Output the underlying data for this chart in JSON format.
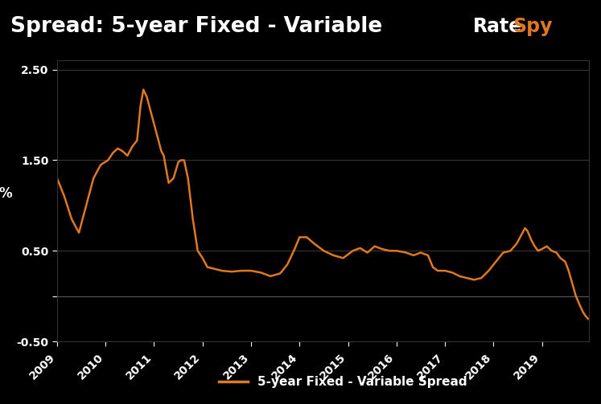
{
  "title": "Spread: 5-year Fixed - Variable",
  "ylabel": "%",
  "legend_label": "5-year Fixed - Variable Spread",
  "line_color": "#E07820",
  "background_color": "#000000",
  "plot_bg_color": "#000000",
  "title_bg_color": "#0a0a0a",
  "grid_color": "#444444",
  "text_color": "#ffffff",
  "orange_accent": "#E07820",
  "ylim": [
    -0.5,
    2.6
  ],
  "xtick_years": [
    2009,
    2010,
    2011,
    2012,
    2013,
    2014,
    2015,
    2016,
    2017,
    2018,
    2019
  ],
  "line_width": 1.8,
  "data": [
    [
      2009.0,
      1.3
    ],
    [
      2009.15,
      1.1
    ],
    [
      2009.3,
      0.85
    ],
    [
      2009.45,
      0.7
    ],
    [
      2009.6,
      1.0
    ],
    [
      2009.75,
      1.3
    ],
    [
      2009.9,
      1.45
    ],
    [
      2010.05,
      1.5
    ],
    [
      2010.15,
      1.58
    ],
    [
      2010.25,
      1.63
    ],
    [
      2010.35,
      1.6
    ],
    [
      2010.45,
      1.55
    ],
    [
      2010.55,
      1.65
    ],
    [
      2010.65,
      1.72
    ],
    [
      2010.72,
      2.1
    ],
    [
      2010.78,
      2.28
    ],
    [
      2010.85,
      2.2
    ],
    [
      2010.95,
      2.0
    ],
    [
      2011.05,
      1.8
    ],
    [
      2011.15,
      1.6
    ],
    [
      2011.2,
      1.55
    ],
    [
      2011.3,
      1.25
    ],
    [
      2011.4,
      1.3
    ],
    [
      2011.5,
      1.48
    ],
    [
      2011.55,
      1.5
    ],
    [
      2011.62,
      1.5
    ],
    [
      2011.7,
      1.3
    ],
    [
      2011.8,
      0.85
    ],
    [
      2011.9,
      0.5
    ],
    [
      2012.0,
      0.42
    ],
    [
      2012.1,
      0.32
    ],
    [
      2012.25,
      0.3
    ],
    [
      2012.4,
      0.28
    ],
    [
      2012.6,
      0.27
    ],
    [
      2012.8,
      0.28
    ],
    [
      2013.0,
      0.28
    ],
    [
      2013.2,
      0.26
    ],
    [
      2013.4,
      0.22
    ],
    [
      2013.6,
      0.25
    ],
    [
      2013.75,
      0.35
    ],
    [
      2013.9,
      0.52
    ],
    [
      2014.0,
      0.65
    ],
    [
      2014.15,
      0.65
    ],
    [
      2014.3,
      0.58
    ],
    [
      2014.5,
      0.5
    ],
    [
      2014.7,
      0.45
    ],
    [
      2014.9,
      0.42
    ],
    [
      2015.1,
      0.5
    ],
    [
      2015.25,
      0.53
    ],
    [
      2015.4,
      0.48
    ],
    [
      2015.55,
      0.55
    ],
    [
      2015.7,
      0.52
    ],
    [
      2015.85,
      0.5
    ],
    [
      2016.0,
      0.5
    ],
    [
      2016.2,
      0.48
    ],
    [
      2016.35,
      0.45
    ],
    [
      2016.5,
      0.48
    ],
    [
      2016.65,
      0.45
    ],
    [
      2016.75,
      0.32
    ],
    [
      2016.85,
      0.28
    ],
    [
      2017.0,
      0.28
    ],
    [
      2017.15,
      0.26
    ],
    [
      2017.3,
      0.22
    ],
    [
      2017.45,
      0.2
    ],
    [
      2017.6,
      0.18
    ],
    [
      2017.75,
      0.2
    ],
    [
      2017.9,
      0.28
    ],
    [
      2018.05,
      0.38
    ],
    [
      2018.2,
      0.48
    ],
    [
      2018.35,
      0.5
    ],
    [
      2018.48,
      0.58
    ],
    [
      2018.58,
      0.68
    ],
    [
      2018.65,
      0.75
    ],
    [
      2018.7,
      0.72
    ],
    [
      2018.78,
      0.62
    ],
    [
      2018.85,
      0.55
    ],
    [
      2018.92,
      0.5
    ],
    [
      2019.0,
      0.52
    ],
    [
      2019.1,
      0.55
    ],
    [
      2019.2,
      0.5
    ],
    [
      2019.3,
      0.48
    ],
    [
      2019.38,
      0.42
    ],
    [
      2019.48,
      0.38
    ],
    [
      2019.55,
      0.28
    ],
    [
      2019.62,
      0.15
    ],
    [
      2019.7,
      0.0
    ],
    [
      2019.78,
      -0.1
    ],
    [
      2019.85,
      -0.18
    ],
    [
      2019.9,
      -0.22
    ],
    [
      2019.95,
      -0.25
    ]
  ]
}
